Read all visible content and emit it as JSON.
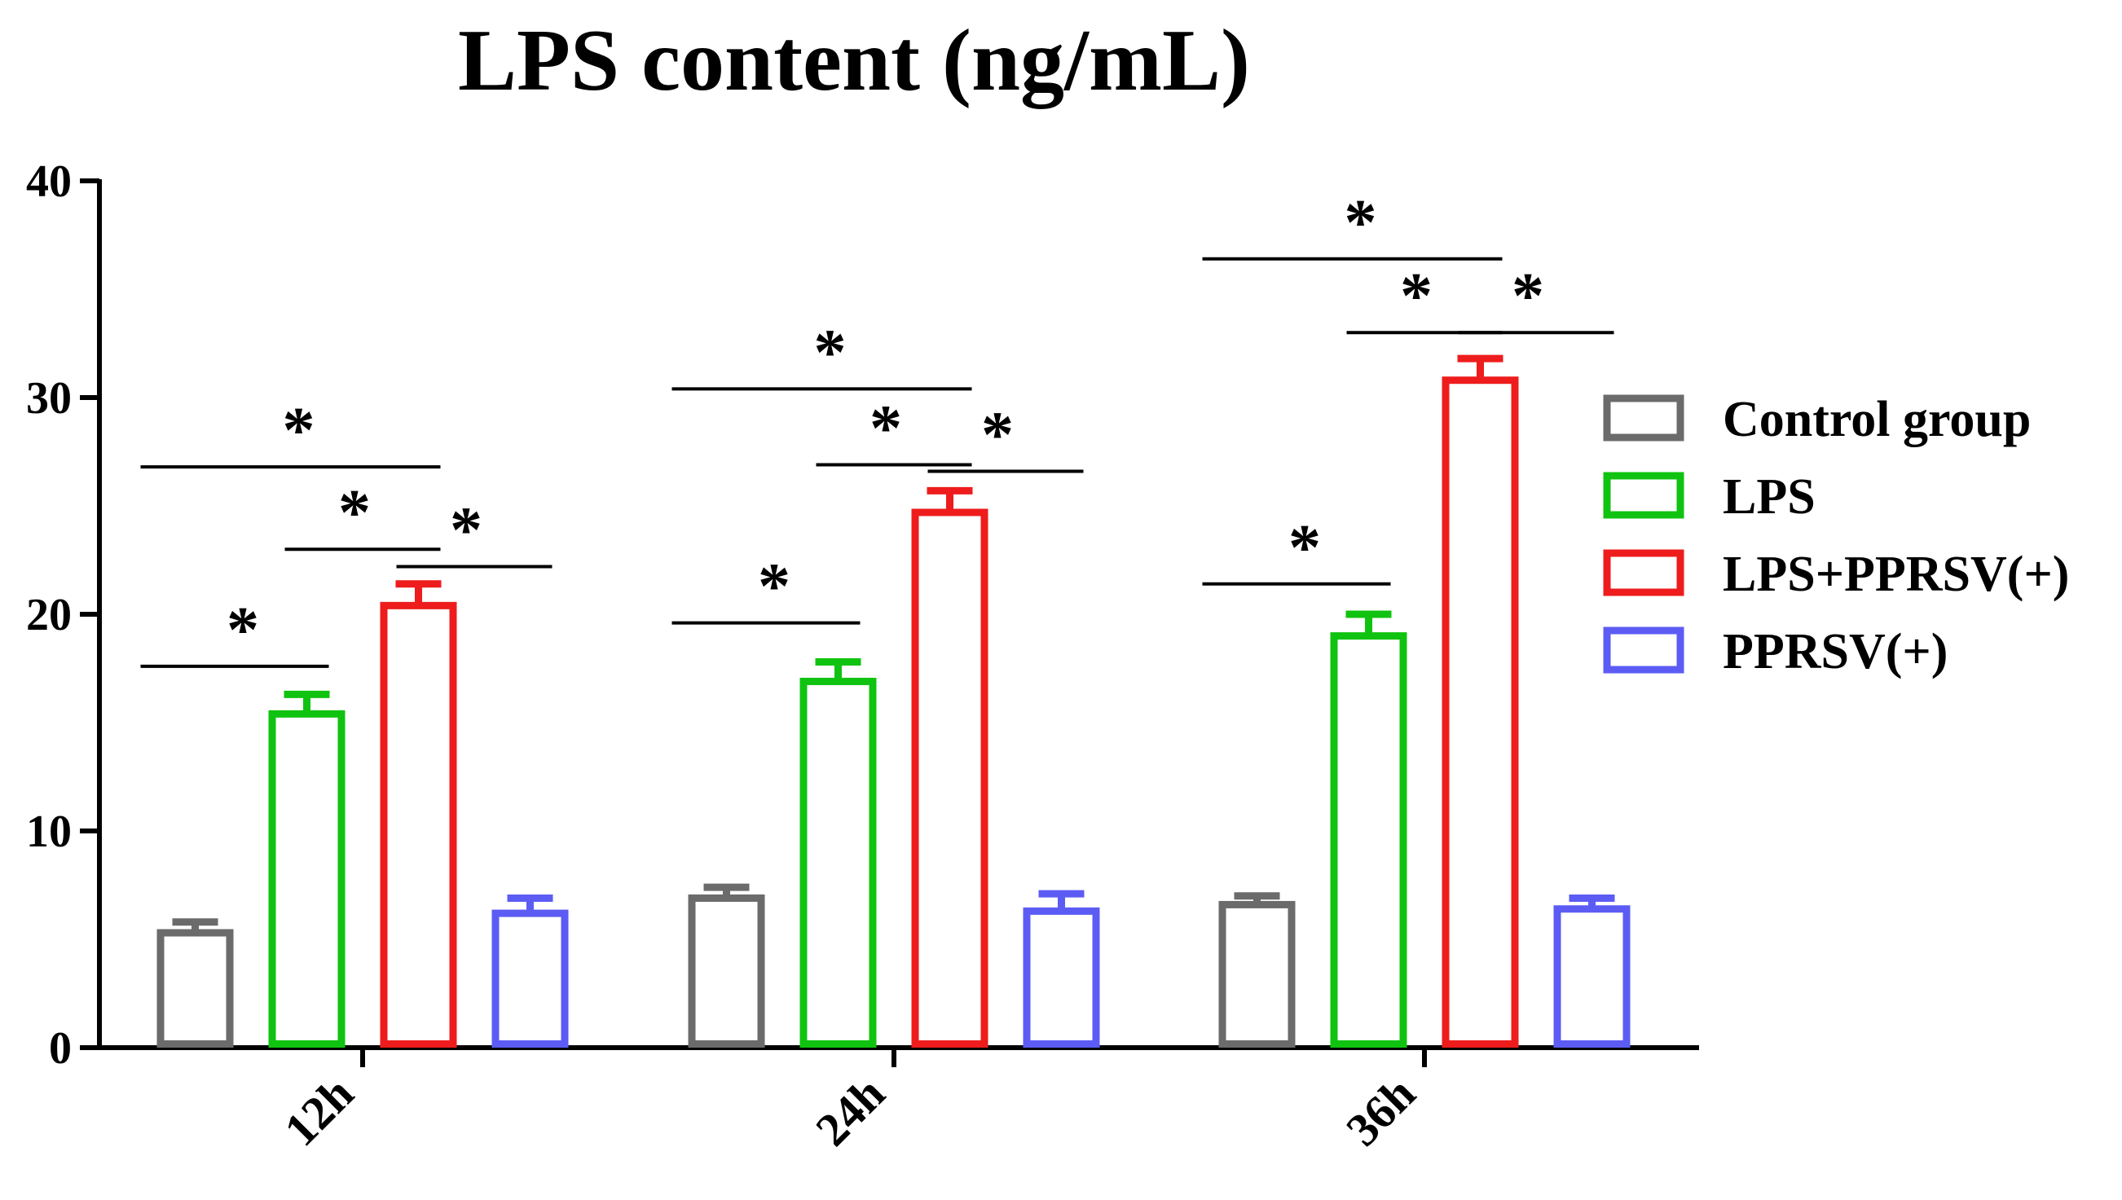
{
  "chart_data": {
    "type": "bar",
    "title": "LPS content (ng/mL)",
    "xlabel": "",
    "ylabel": "",
    "ylim": [
      0,
      40
    ],
    "yticks": [
      0,
      10,
      20,
      30,
      40
    ],
    "grid": false,
    "legend_position": "right",
    "categories": [
      "12h",
      "24h",
      "36h"
    ],
    "series": [
      {
        "name": "Control group",
        "color": "#6b6b6b",
        "values": [
          5.3,
          6.9,
          6.6
        ],
        "errors": [
          0.5,
          0.5,
          0.4
        ]
      },
      {
        "name": "LPS",
        "color": "#10c310",
        "values": [
          15.4,
          16.9,
          19.0
        ],
        "errors": [
          0.9,
          0.9,
          1.0
        ]
      },
      {
        "name": "LPS+PPRSV(+)",
        "color": "#ee1c1c",
        "values": [
          20.4,
          24.7,
          30.8
        ],
        "errors": [
          1.0,
          1.0,
          1.0
        ]
      },
      {
        "name": "PPRSV(+)",
        "color": "#5c5cf5",
        "values": [
          6.2,
          6.3,
          6.4
        ],
        "errors": [
          0.7,
          0.8,
          0.5
        ]
      }
    ],
    "significance": [
      {
        "category": 0,
        "from": 0,
        "to": 1,
        "y": 17.6,
        "label": "*"
      },
      {
        "category": 0,
        "from": 1,
        "to": 2,
        "y": 23.0,
        "label": "*"
      },
      {
        "category": 0,
        "from": 0,
        "to": 2,
        "y": 26.8,
        "label": "*"
      },
      {
        "category": 0,
        "from": 2,
        "to": 3,
        "y": 22.2,
        "label": "*"
      },
      {
        "category": 1,
        "from": 0,
        "to": 1,
        "y": 19.6,
        "label": "*"
      },
      {
        "category": 1,
        "from": 1,
        "to": 2,
        "y": 26.9,
        "label": "*"
      },
      {
        "category": 1,
        "from": 0,
        "to": 2,
        "y": 30.4,
        "label": "*"
      },
      {
        "category": 1,
        "from": 2,
        "to": 3,
        "y": 26.6,
        "label": "*"
      },
      {
        "category": 2,
        "from": 0,
        "to": 1,
        "y": 21.4,
        "label": "*"
      },
      {
        "category": 2,
        "from": 1,
        "to": 2,
        "y": 33.0,
        "label": "*"
      },
      {
        "category": 2,
        "from": 0,
        "to": 2,
        "y": 36.4,
        "label": "*"
      },
      {
        "category": 2,
        "from": 2,
        "to": 3,
        "y": 33.0,
        "label": "*"
      }
    ]
  }
}
